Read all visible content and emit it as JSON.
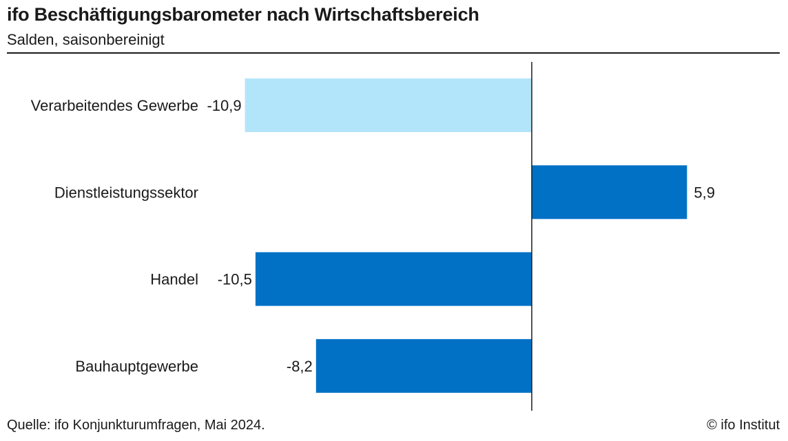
{
  "header": {
    "title": "ifo Beschäftigungsbarometer nach Wirtschaftsbereich",
    "subtitle": "Salden, saisonbereinigt"
  },
  "footer": {
    "source": "Quelle: ifo Konjunkturumfragen, Mai 2024.",
    "copyright": "© ifo Institut"
  },
  "colors": {
    "highlight": "#b3e5fa",
    "primary": "#0071c5",
    "axis": "#1a1a1a",
    "text": "#1a1a1a"
  },
  "chart_data": {
    "type": "bar",
    "orientation": "horizontal",
    "categories": [
      "Verarbeitendes Gewerbe",
      "Dienstleistungssektor",
      "Handel",
      "Bauhauptgewerbe"
    ],
    "values": [
      -10.9,
      5.9,
      -10.5,
      -8.2
    ],
    "value_labels": [
      "-10,9",
      "5,9",
      "-10,5",
      "-8,2"
    ],
    "bar_colors": [
      "#b3e5fa",
      "#0071c5",
      "#0071c5",
      "#0071c5"
    ],
    "title": "ifo Beschäftigungsbarometer nach Wirtschaftsbereich",
    "subtitle": "Salden, saisonbereinigt",
    "xlabel": "",
    "ylabel": "",
    "grid": false,
    "legend": "none"
  }
}
